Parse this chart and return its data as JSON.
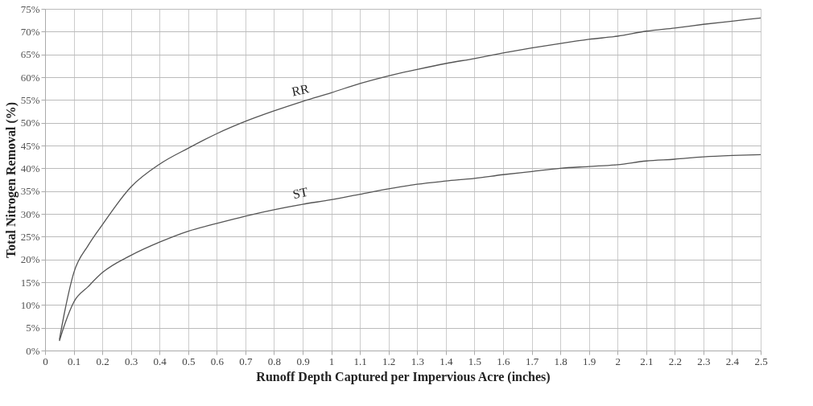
{
  "chart_data": {
    "type": "line",
    "xlabel": "Runoff Depth Captured per Impervious Acre (inches)",
    "ylabel": "Total Nitrogen Removal (%)",
    "xlim": [
      0,
      2.5
    ],
    "xticks": [
      0,
      0.1,
      0.2,
      0.3,
      0.4,
      0.5,
      0.6,
      0.7,
      0.8,
      0.9,
      1,
      1.1,
      1.2,
      1.3,
      1.4,
      1.5,
      1.6,
      1.7,
      1.8,
      1.9,
      2,
      2.1,
      2.2,
      2.3,
      2.4,
      2.5
    ],
    "ylim": [
      0,
      75
    ],
    "yticks": [
      {
        "value": 0,
        "label": "0%"
      },
      {
        "value": 5,
        "label": "5%"
      },
      {
        "value": 10,
        "label": "10%"
      },
      {
        "value": 15,
        "label": "15%"
      },
      {
        "value": 20,
        "label": "20%"
      },
      {
        "value": 25,
        "label": "25%"
      },
      {
        "value": 30,
        "label": "30%"
      },
      {
        "value": 35,
        "label": "35%"
      },
      {
        "value": 40,
        "label": "40%"
      },
      {
        "value": 45,
        "label": "45%"
      },
      {
        "value": 50,
        "label": "50%"
      },
      {
        "value": 55,
        "label": "55%"
      },
      {
        "value": 60,
        "label": "60%"
      },
      {
        "value": 65,
        "label": "65%"
      },
      {
        "value": 70,
        "label": "70%"
      },
      {
        "value": 75,
        "label": "75%"
      }
    ],
    "x": [
      0.05,
      0.07,
      0.1,
      0.15,
      0.2,
      0.3,
      0.4,
      0.5,
      0.6,
      0.7,
      0.8,
      0.9,
      1,
      1.1,
      1.2,
      1.3,
      1.4,
      1.5,
      1.6,
      1.7,
      1.8,
      1.9,
      2,
      2.1,
      2.2,
      2.3,
      2.4,
      2.5
    ],
    "series": [
      {
        "name": "RR",
        "color": "#555555",
        "values": [
          2.4,
          9,
          17,
          23,
          27.6,
          35.9,
          40.9,
          44.4,
          47.6,
          50.3,
          52.6,
          54.7,
          56.6,
          58.6,
          60.3,
          61.7,
          63,
          64.1,
          65.3,
          66.4,
          67.4,
          68.3,
          69,
          70.1,
          70.8,
          71.6,
          72.3,
          73
        ]
      },
      {
        "name": "ST",
        "color": "#555555",
        "values": [
          2.1,
          6,
          10.6,
          14,
          17.1,
          20.9,
          23.8,
          26.2,
          27.9,
          29.5,
          30.9,
          32.1,
          33.1,
          34.3,
          35.5,
          36.5,
          37.2,
          37.8,
          38.6,
          39.3,
          40,
          40.4,
          40.8,
          41.6,
          42,
          42.5,
          42.8,
          43
        ]
      }
    ],
    "grid": true,
    "line_style": "solid",
    "marker": "none"
  }
}
